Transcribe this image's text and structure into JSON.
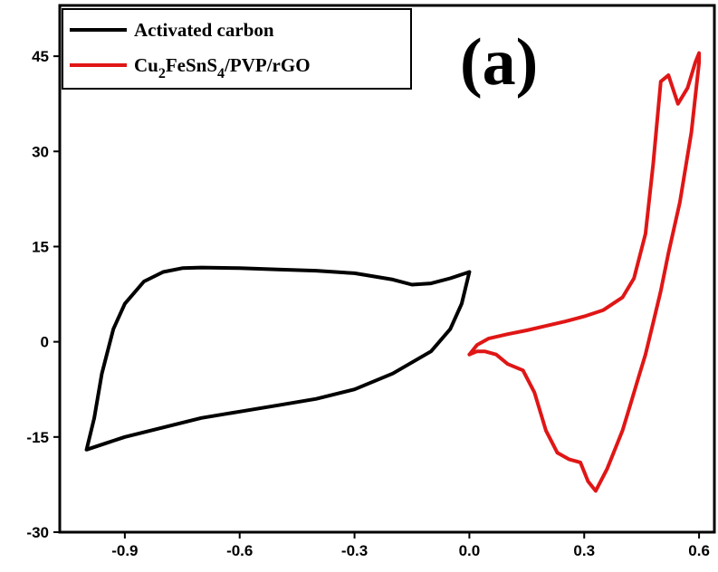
{
  "chart_data": {
    "type": "line",
    "panel_label": "(a)",
    "xlim": [
      -1.07,
      0.64
    ],
    "ylim": [
      -30,
      53
    ],
    "xticks": [
      -0.9,
      -0.6,
      -0.3,
      0.0,
      0.3,
      0.6
    ],
    "xtick_labels": [
      "-0.9",
      "-0.6",
      "-0.3",
      "0.0",
      "0.3",
      "0.6"
    ],
    "yticks": [
      -30,
      -15,
      0,
      15,
      30,
      45
    ],
    "ytick_labels": [
      "-30",
      "-15",
      "0",
      "15",
      "30",
      "45"
    ],
    "xlabel": "",
    "ylabel": "",
    "grid": false,
    "legend_position": "top-left",
    "series": [
      {
        "name": "Activated carbon",
        "color": "#000000",
        "x": [
          0.0,
          -0.05,
          -0.1,
          -0.15,
          -0.2,
          -0.3,
          -0.4,
          -0.5,
          -0.6,
          -0.7,
          -0.75,
          -0.8,
          -0.85,
          -0.9,
          -0.93,
          -0.96,
          -0.98,
          -1.0,
          -0.95,
          -0.9,
          -0.8,
          -0.7,
          -0.6,
          -0.5,
          -0.4,
          -0.3,
          -0.2,
          -0.1,
          -0.05,
          -0.02,
          0.0
        ],
        "y": [
          11,
          10,
          9.2,
          9.0,
          9.8,
          10.8,
          11.2,
          11.4,
          11.6,
          11.7,
          11.6,
          11,
          9.5,
          6,
          2,
          -5,
          -12,
          -17,
          -16,
          -15,
          -13.5,
          -12,
          -11,
          -10,
          -9,
          -7.5,
          -5,
          -1.5,
          2,
          6,
          11
        ]
      },
      {
        "name": "Cu2FeSnS4/PVP/rGO",
        "color": "#e01616",
        "x": [
          0.0,
          0.02,
          0.05,
          0.1,
          0.15,
          0.2,
          0.25,
          0.3,
          0.35,
          0.4,
          0.43,
          0.46,
          0.48,
          0.5,
          0.52,
          0.545,
          0.57,
          0.59,
          0.6,
          0.6,
          0.58,
          0.55,
          0.52,
          0.5,
          0.48,
          0.46,
          0.44,
          0.42,
          0.4,
          0.36,
          0.33,
          0.31,
          0.29,
          0.26,
          0.23,
          0.2,
          0.17,
          0.14,
          0.1,
          0.07,
          0.04,
          0.02,
          0.0
        ],
        "y": [
          -2,
          -0.5,
          0.5,
          1.2,
          1.8,
          2.5,
          3.2,
          4.0,
          5.0,
          7.0,
          10.0,
          17.0,
          28.0,
          41.0,
          42.0,
          37.5,
          40.0,
          44.0,
          45.5,
          44.0,
          33.0,
          22.0,
          14.0,
          8.0,
          3.0,
          -2.0,
          -6.0,
          -10.0,
          -14.0,
          -20.0,
          -23.5,
          -22.0,
          -19.0,
          -18.5,
          -17.5,
          -14.0,
          -8.0,
          -4.5,
          -3.5,
          -2.0,
          -1.5,
          -1.5,
          -2.0
        ]
      }
    ]
  },
  "legend": {
    "items": [
      {
        "label": "Activated carbon",
        "color": "#000000"
      },
      {
        "label": "Cu2FeSnS4/PVP/rGO",
        "color": "#e01616"
      }
    ]
  }
}
